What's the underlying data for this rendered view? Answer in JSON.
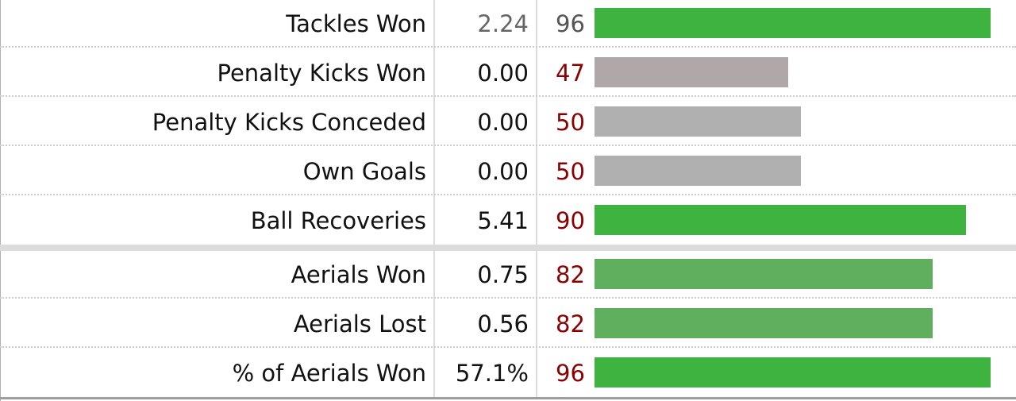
{
  "colors": {
    "bar_high": "#3eb340",
    "bar_mid_high": "#5faf5f",
    "bar_neutral": "#b0b0b0",
    "bar_low": "#b0a8a8",
    "percentile_text": "#8b0000",
    "percentile_text_muted": "#555555"
  },
  "chart_data": {
    "type": "bar",
    "orientation": "horizontal",
    "xlim": [
      0,
      100
    ],
    "grid": false,
    "legend": "none",
    "categories": [
      "Tackles Won",
      "Penalty Kicks Won",
      "Penalty Kicks Conceded",
      "Own Goals",
      "Ball Recoveries",
      "Aerials Won",
      "Aerials Lost",
      "% of Aerials Won"
    ],
    "per90": [
      "2.24",
      "0.00",
      "0.00",
      "0.00",
      "5.41",
      "0.75",
      "0.56",
      "57.1%"
    ],
    "percentile": [
      96,
      47,
      50,
      50,
      90,
      82,
      82,
      96
    ],
    "groups": [
      [
        0,
        1,
        2,
        3,
        4
      ],
      [
        5,
        6,
        7
      ]
    ],
    "bar_color_keys": [
      "bar_high",
      "bar_low",
      "bar_neutral",
      "bar_neutral",
      "bar_high",
      "bar_mid_high",
      "bar_mid_high",
      "bar_high"
    ],
    "muted_rows": [
      0
    ]
  }
}
